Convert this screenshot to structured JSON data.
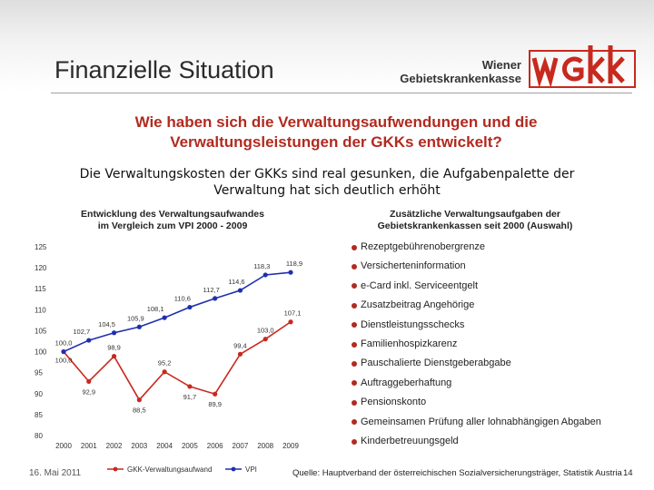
{
  "slide": {
    "title": "Finanzielle Situation",
    "question_line1": "Wie haben sich die Verwaltungsaufwendungen und die",
    "question_line2": "Verwaltungsleistungen der GKKs entwickelt?",
    "statement_line1": "Die Verwaltungskosten der GKKs sind real gesunken, die Aufgabenpalette der",
    "statement_line2": "Verwaltung hat sich deutlich erhöht"
  },
  "logo": {
    "line1": "Wiener",
    "line2": "Gebietskrankenkasse",
    "mark": "WGKK",
    "color": "#c8291e"
  },
  "chart_section": {
    "title_line1": "Entwicklung des Verwaltungsaufwandes",
    "title_line2": "im Vergleich zum VPI 2000 - 2009"
  },
  "list_section": {
    "title_line1": "Zusätzliche Verwaltungsaufgaben der",
    "title_line2": "Gebietskrankenkassen seit 2000 (Auswahl)",
    "items": [
      "Rezeptgebührenobergrenze",
      "Versicherteninformation",
      "e-Card inkl. Serviceentgelt",
      "Zusatzbeitrag Angehörige",
      "Dienstleistungsschecks",
      "Familienhospizkarenz",
      "Pauschalierte Dienstgeberabgabe",
      "Auftraggeberhaftung",
      "Pensionskonto",
      "Gemeinsamen Prüfung aller lohnabhängigen Abgaben",
      "Kinderbetreuungsgeld"
    ],
    "bullet_color": "#b22a1f"
  },
  "chart_data": {
    "type": "line",
    "title": "Entwicklung des Verwaltungsaufwandes im Vergleich zum VPI 2000 - 2009",
    "xlabel": "",
    "ylabel": "",
    "x": [
      "2000",
      "2001",
      "2002",
      "2003",
      "2004",
      "2005",
      "2006",
      "2007",
      "2008",
      "2009"
    ],
    "ylim": [
      80,
      125
    ],
    "yticks": [
      80,
      85,
      90,
      95,
      100,
      105,
      110,
      115,
      120,
      125
    ],
    "grid": false,
    "legend": "bottom",
    "series": [
      {
        "name": "GKK-Verwaltungsaufwand",
        "color": "#c8291e",
        "values": [
          100.0,
          92.9,
          98.9,
          88.5,
          95.2,
          91.7,
          89.9,
          99.4,
          103.0,
          107.1
        ],
        "labels": [
          "100,0",
          "92,9",
          "98,9",
          "88,5",
          "95,2",
          "91,7",
          "89,9",
          "99,4",
          "103,0",
          "107,1"
        ]
      },
      {
        "name": "VPI",
        "color": "#1f2fb0",
        "values": [
          100.0,
          102.7,
          104.5,
          105.9,
          108.1,
          110.6,
          112.7,
          114.6,
          118.3,
          118.9
        ],
        "labels": [
          "100,0",
          "102,7",
          "104,5",
          "105,9",
          "108,1",
          "110,6",
          "112,7",
          "114,6",
          "118,3",
          "118,9"
        ]
      }
    ]
  },
  "footer": {
    "date": "16. Mai 2011",
    "source": "Quelle: Hauptverband der österreichischen Sozialversicherungsträger, Statistik Austria",
    "page": "14"
  }
}
